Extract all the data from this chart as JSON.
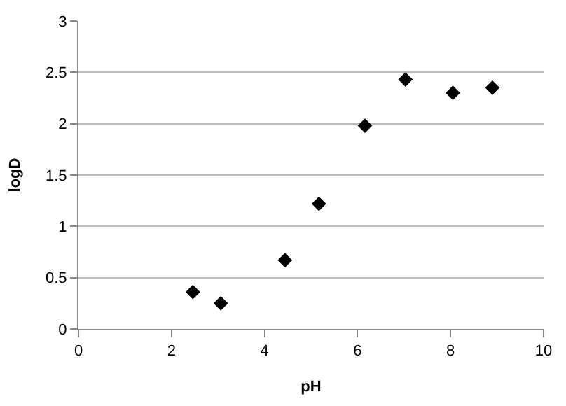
{
  "chart_data": {
    "type": "scatter",
    "xlabel": "pH",
    "ylabel": "logD",
    "x": [
      2.46,
      3.06,
      4.44,
      5.17,
      6.16,
      7.03,
      8.05,
      8.9
    ],
    "series": [
      {
        "color": "#000000",
        "values": [
          0.36,
          0.25,
          0.67,
          1.22,
          1.98,
          2.43,
          2.3,
          2.35
        ]
      }
    ],
    "xlim": [
      0,
      10
    ],
    "xticks": [
      0,
      2,
      4,
      6,
      8,
      10
    ],
    "ylim": [
      0,
      3
    ],
    "yticks": [
      0,
      0.5,
      1,
      1.5,
      2,
      2.5,
      3
    ],
    "grid": "y",
    "marker": "diamond"
  }
}
